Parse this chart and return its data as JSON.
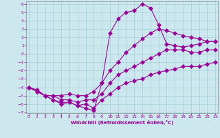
{
  "xlabel": "Windchill (Refroidissement éolien,°C)",
  "bg_color": "#cce8ee",
  "grid_color": "#aad4dd",
  "line_color": "#990099",
  "spine_color": "#888888",
  "xmin": 0,
  "xmax": 23,
  "ymin": -7,
  "ymax": 6,
  "hours": [
    0,
    1,
    2,
    3,
    4,
    5,
    6,
    7,
    8,
    9,
    10,
    11,
    12,
    13,
    14,
    15,
    16,
    17,
    18,
    19,
    20,
    21,
    22,
    23
  ],
  "actual": [
    -4.0,
    -4.5,
    -5.0,
    -5.5,
    -6.0,
    -5.8,
    -6.2,
    -6.5,
    -6.8,
    -3.5,
    2.5,
    4.2,
    5.0,
    5.2,
    6.0,
    5.5,
    3.5,
    1.2,
    1.0,
    0.8,
    1.0,
    1.2,
    1.5,
    1.5
  ],
  "line_top": [
    -4.0,
    -4.3,
    -5.0,
    -5.0,
    -5.0,
    -4.8,
    -5.0,
    -5.0,
    -4.5,
    -3.5,
    -2.0,
    -1.0,
    0.2,
    1.0,
    1.8,
    2.5,
    3.0,
    2.8,
    2.5,
    2.2,
    2.0,
    1.8,
    1.5,
    1.5
  ],
  "line_bot": [
    -4.0,
    -4.5,
    -5.0,
    -5.5,
    -5.8,
    -5.8,
    -6.2,
    -6.0,
    -6.5,
    -5.5,
    -4.8,
    -4.0,
    -3.5,
    -3.2,
    -3.0,
    -2.5,
    -2.2,
    -2.0,
    -1.8,
    -1.5,
    -1.5,
    -1.5,
    -1.2,
    -1.0
  ],
  "line_mid": [
    -4.0,
    -4.5,
    -5.0,
    -5.0,
    -5.5,
    -5.5,
    -5.8,
    -5.5,
    -5.5,
    -4.8,
    -3.5,
    -2.5,
    -2.0,
    -1.5,
    -1.0,
    -0.5,
    0.0,
    0.5,
    0.5,
    0.5,
    0.2,
    0.2,
    0.5,
    0.5
  ]
}
